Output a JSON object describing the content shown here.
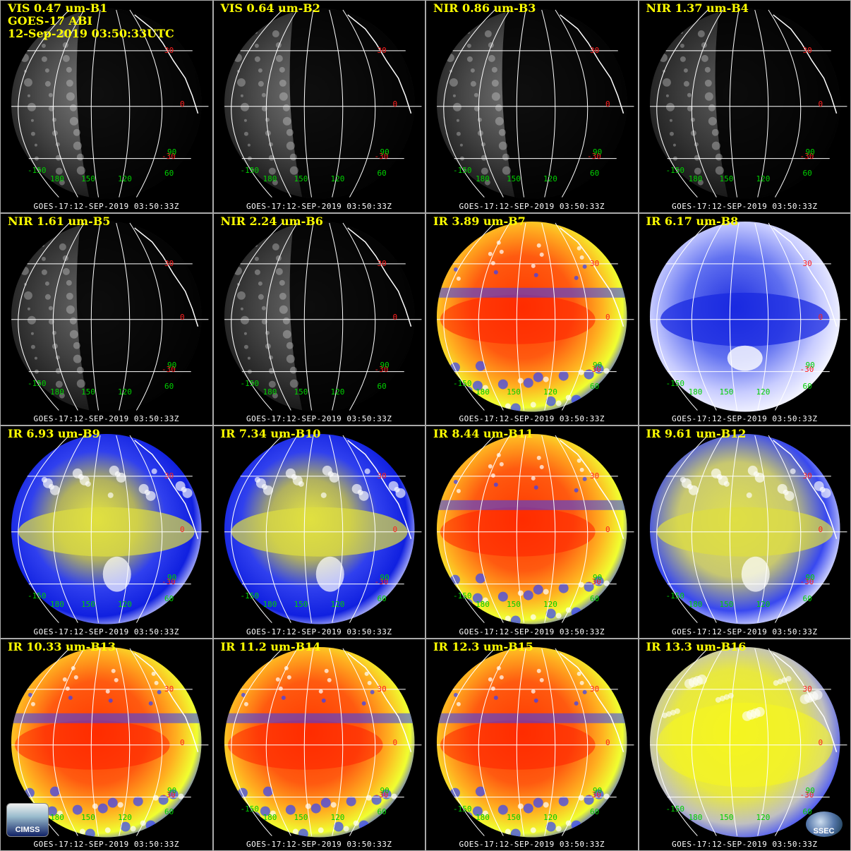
{
  "satellite_info": {
    "line1": "GOES-17 ABI",
    "line2": "12-Sep-2019 03:50:33UTC"
  },
  "timestamp": "GOES-17:12-SEP-2019 03:50:33Z",
  "grid_labels": {
    "lat": [
      "30",
      "0",
      "-30"
    ],
    "lon": [
      "-150",
      "180",
      "150",
      "120",
      "90",
      "60"
    ]
  },
  "logos": {
    "left": "CIMSS",
    "right": "SSEC"
  },
  "colors": {
    "label_yellow": "#ffff00",
    "lat_red": "#ff2020",
    "lon_green": "#00d000",
    "grid_white": "#ffffff"
  },
  "panels": [
    {
      "label": "VIS 0.47 um-B1",
      "style": "vis",
      "brightness": 0.55
    },
    {
      "label": "VIS 0.64 um-B2",
      "style": "vis",
      "brightness": 0.5
    },
    {
      "label": "NIR 0.86 um-B3",
      "style": "vis",
      "brightness": 0.5
    },
    {
      "label": "NIR 1.37 um-B4",
      "style": "vis",
      "brightness": 0.3
    },
    {
      "label": "NIR 1.61 um-B5",
      "style": "vis",
      "brightness": 0.4
    },
    {
      "label": "NIR 2.24 um-B6",
      "style": "vis",
      "brightness": 0.4
    },
    {
      "label": "IR 3.89 um-B7",
      "style": "ir"
    },
    {
      "label": "IR 6.17 um-B8",
      "style": "wv_light"
    },
    {
      "label": "IR 6.93 um-B9",
      "style": "wv"
    },
    {
      "label": "IR 7.34 um-B10",
      "style": "wv"
    },
    {
      "label": "IR 8.44 um-B11",
      "style": "ir"
    },
    {
      "label": "IR 9.61 um-B12",
      "style": "o3"
    },
    {
      "label": "IR 10.33 um-B13",
      "style": "ir"
    },
    {
      "label": "IR 11.2 um-B14",
      "style": "ir"
    },
    {
      "label": "IR 12.3 um-B15",
      "style": "ir"
    },
    {
      "label": "IR 13.3 um-B16",
      "style": "co2"
    }
  ]
}
